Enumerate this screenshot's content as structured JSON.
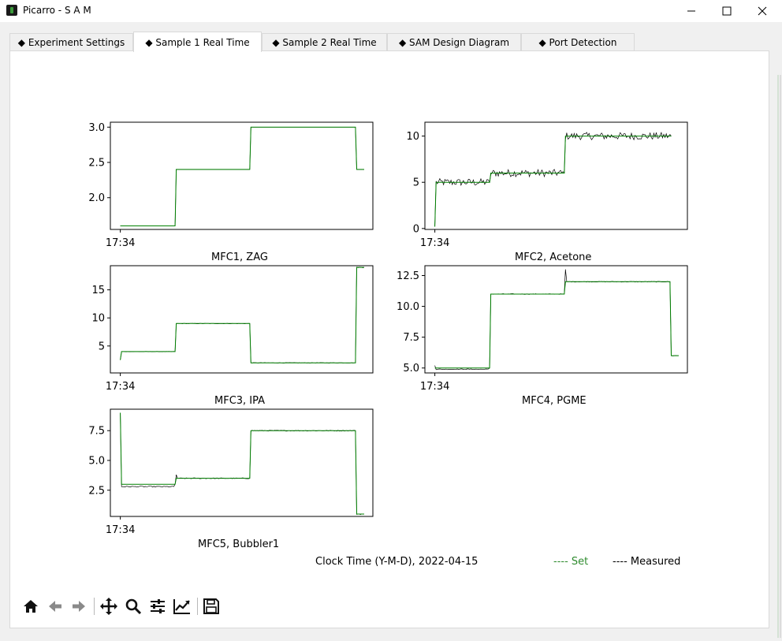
{
  "window": {
    "title": "Picarro - S A M"
  },
  "tabs": [
    {
      "label": "◆ Experiment Settings",
      "active": false
    },
    {
      "label": "◆ Sample 1 Real Time",
      "active": true
    },
    {
      "label": "◆ Sample 2 Real Time",
      "active": false
    },
    {
      "label": "◆ SAM Design Diagram",
      "active": false
    },
    {
      "label": "◆ Port Detection",
      "active": false
    }
  ],
  "footer": {
    "clock_label": "Clock Time (Y-M-D), 2022-04-15",
    "legend_set": "---- Set",
    "legend_measured": "---- Measured"
  },
  "colors": {
    "set": "#008000",
    "measured": "#000000",
    "legend_set_text": "#2e8b2e"
  },
  "toolbar": {
    "icons": [
      "home-icon",
      "back-arrow-icon",
      "forward-arrow-icon",
      "pan-icon",
      "zoom-icon",
      "configure-subplots-icon",
      "edit-axis-icon",
      "save-icon"
    ]
  },
  "chart_data": [
    {
      "type": "line",
      "title": "MFC1, ZAG",
      "x_tick_labels": [
        "17:34"
      ],
      "ylim": [
        1.55,
        3.07
      ],
      "y_ticks": [
        2.0,
        2.5,
        3.0
      ],
      "y_tick_labels": [
        "2.0",
        "2.5",
        "3.0"
      ],
      "series": [
        {
          "name": "Set",
          "x": [
            0,
            44,
            45,
            104,
            105,
            189,
            190,
            196
          ],
          "y": [
            1.6,
            1.6,
            2.4,
            2.4,
            3.0,
            3.0,
            2.4,
            2.4
          ]
        },
        {
          "name": "Measured",
          "x": [
            0,
            44,
            45,
            104,
            105,
            189,
            190,
            196
          ],
          "y": [
            1.6,
            1.6,
            2.4,
            2.4,
            3.0,
            3.0,
            2.4,
            2.4
          ]
        }
      ]
    },
    {
      "type": "line",
      "title": "MFC2, Acetone",
      "x_tick_labels": [
        "17:34"
      ],
      "ylim": [
        -0.1,
        11.5
      ],
      "y_ticks": [
        0,
        5,
        10
      ],
      "y_tick_labels": [
        "0",
        "5",
        "10"
      ],
      "series": [
        {
          "name": "Set",
          "x": [
            0,
            1,
            44,
            45,
            104,
            105,
            190
          ],
          "y": [
            0.2,
            5,
            5,
            6,
            6,
            10,
            10
          ]
        },
        {
          "name": "Measured",
          "x": [
            0,
            1,
            44,
            45,
            104,
            105,
            190
          ],
          "y": [
            0.2,
            5,
            5,
            6,
            6,
            10,
            10
          ],
          "noise": 0.4
        }
      ]
    },
    {
      "type": "line",
      "title": "MFC3, IPA",
      "x_tick_labels": [
        "17:34"
      ],
      "ylim": [
        0.2,
        19.3
      ],
      "y_ticks": [
        5,
        10,
        15
      ],
      "y_tick_labels": [
        "5",
        "10",
        "15"
      ],
      "series": [
        {
          "name": "Set",
          "x": [
            0,
            1,
            44,
            45,
            104,
            105,
            189,
            190,
            196
          ],
          "y": [
            2.5,
            4,
            4,
            9,
            9,
            2,
            2,
            19,
            19
          ]
        },
        {
          "name": "Measured",
          "x": [
            0,
            1,
            44,
            45,
            104,
            105,
            189,
            190,
            196
          ],
          "y": [
            2.5,
            4,
            4,
            9,
            9,
            2,
            2,
            19,
            19
          ],
          "noise": 0.04
        }
      ]
    },
    {
      "type": "line",
      "title": "MFC4, PGME",
      "x_tick_labels": [
        "17:34"
      ],
      "ylim": [
        4.6,
        13.3
      ],
      "y_ticks": [
        5.0,
        7.5,
        10.0,
        12.5
      ],
      "y_tick_labels": [
        "5.0",
        "7.5",
        "10.0",
        "12.5"
      ],
      "series": [
        {
          "name": "Set",
          "x": [
            0,
            44,
            45,
            104,
            105,
            189,
            190,
            196
          ],
          "y": [
            5.0,
            5.0,
            11.0,
            11.0,
            12.0,
            12.0,
            6.0,
            6.0
          ]
        },
        {
          "name": "Measured",
          "x": [
            0,
            1,
            44,
            45,
            104,
            105,
            106,
            189,
            190,
            196
          ],
          "y": [
            5.2,
            4.9,
            5.0,
            11.0,
            11.0,
            13.0,
            12.0,
            12.0,
            6.0,
            6.0
          ],
          "noise": 0.03
        }
      ]
    },
    {
      "type": "line",
      "title": "MFC5, Bubbler1",
      "x_tick_labels": [
        "17:34"
      ],
      "ylim": [
        0.3,
        9.3
      ],
      "y_ticks": [
        2.5,
        5.0,
        7.5
      ],
      "y_tick_labels": [
        "2.5",
        "5.0",
        "7.5"
      ],
      "series": [
        {
          "name": "Set",
          "x": [
            0,
            1,
            44,
            45,
            104,
            105,
            189,
            190,
            196
          ],
          "y": [
            9.0,
            3.0,
            3.0,
            3.5,
            3.5,
            7.5,
            7.5,
            0.5,
            0.5
          ]
        },
        {
          "name": "Measured",
          "x": [
            0,
            1,
            44,
            45,
            46,
            104,
            105,
            189,
            190,
            196
          ],
          "y": [
            9.0,
            2.8,
            3.0,
            3.8,
            3.5,
            3.5,
            7.5,
            7.5,
            0.5,
            0.5
          ],
          "noise": 0.04
        }
      ]
    }
  ]
}
